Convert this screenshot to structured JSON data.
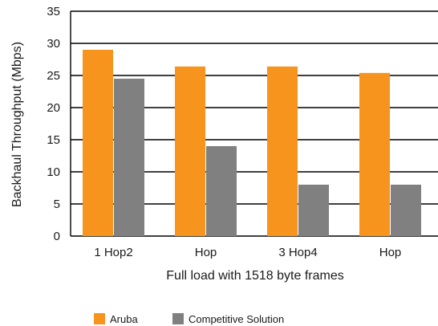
{
  "chart_data": {
    "type": "bar",
    "title": "",
    "xlabel": "Full load with 1518 byte frames",
    "ylabel": "Backhaul Throughput (Mbps)",
    "categories": [
      "1 Hop2",
      "Hop",
      "3 Hop4",
      "Hop"
    ],
    "ylim": [
      0,
      35
    ],
    "yticks": [
      0,
      5,
      10,
      15,
      20,
      25,
      30,
      35
    ],
    "grid": true,
    "legend": "bottom",
    "series": [
      {
        "name": "Aruba",
        "color": "#f7941d",
        "values": [
          29,
          26.4,
          26.4,
          25.4
        ]
      },
      {
        "name": "Competitive Solution",
        "color": "#808080",
        "values": [
          24.5,
          14,
          8,
          8
        ]
      }
    ]
  }
}
